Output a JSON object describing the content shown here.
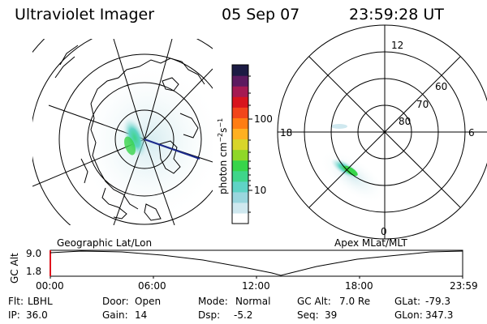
{
  "header": {
    "instrument": "Ultraviolet Imager",
    "date": "05 Sep 07",
    "time": "23:59:28 UT"
  },
  "left_map": {
    "caption": "Geographic Lat/Lon"
  },
  "colorbar": {
    "unit_label": "photon cm",
    "unit_sup1": "−2",
    "unit_s": "s",
    "unit_sup2": "−1",
    "tick_100": "100",
    "tick_10": "10",
    "colors": [
      "#ffffff",
      "#cfe8ef",
      "#9ad6de",
      "#5fd3c5",
      "#3fd58a",
      "#37d54a",
      "#8fd728",
      "#d8d52a",
      "#ffb021",
      "#ff7d12",
      "#f2451a",
      "#d8141d",
      "#a51a52",
      "#5c1a5f",
      "#1c1b44"
    ]
  },
  "right_map": {
    "caption": "Apex MLat/MLT",
    "mlt_12": "12",
    "mlt_18": "18",
    "mlt_6": "6",
    "mlt_0": "0",
    "lat_60": "60",
    "lat_70": "70",
    "lat_80": "80"
  },
  "altitude_plot": {
    "ylabel": "GC Alt",
    "y_top": "9.0",
    "y_bottom": "1.8",
    "x_ticks": [
      "00:00",
      "06:00",
      "12:00",
      "18:00",
      "23:59"
    ]
  },
  "status": {
    "flt_label": "Flt:",
    "flt_value": "LBHL",
    "ip_label": "IP:",
    "ip_value": "36.0",
    "door_label": "Door:",
    "door_value": "Open",
    "gain_label": "Gain:",
    "gain_value": "14",
    "mode_label": "Mode:",
    "mode_value": "Normal",
    "dsp_label": "Dsp:",
    "dsp_value": "-5.2",
    "gcalt_label": "GC Alt:",
    "gcalt_value": "7.0 Re",
    "seq_label": "Seq:",
    "seq_value": "39",
    "glat_label": "GLat:",
    "glat_value": "-79.3",
    "glon_label": "GLon:",
    "glon_value": "347.3"
  }
}
